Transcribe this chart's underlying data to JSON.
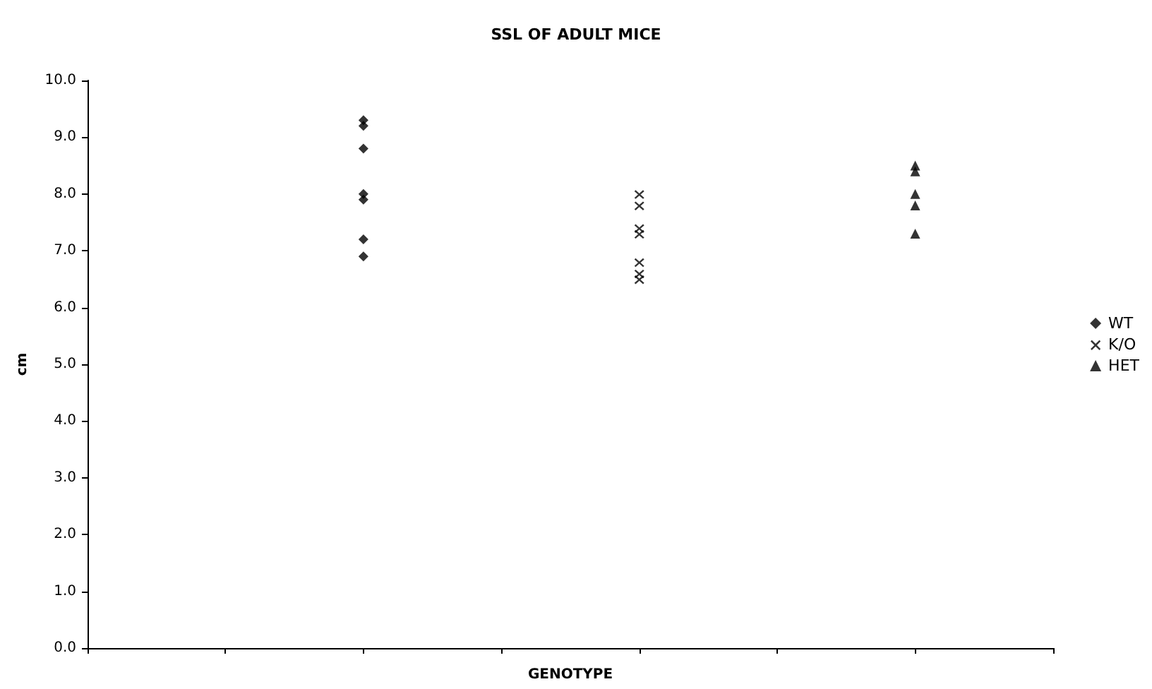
{
  "chart_data": {
    "type": "scatter",
    "title": "SSL OF ADULT MICE",
    "xlabel": "GENOTYPE",
    "ylabel": "cm",
    "categories": [
      null,
      null,
      null,
      null,
      null,
      null,
      null,
      null
    ],
    "ylim": [
      0,
      10
    ],
    "yticks": [
      {
        "value": 0,
        "label": "0.0"
      },
      {
        "value": 1,
        "label": "1.0"
      },
      {
        "value": 2,
        "label": "2.0"
      },
      {
        "value": 3,
        "label": "3.0"
      },
      {
        "value": 4,
        "label": "4.0"
      },
      {
        "value": 5,
        "label": "5.0"
      },
      {
        "value": 6,
        "label": "6.0"
      },
      {
        "value": 7,
        "label": "7.0"
      },
      {
        "value": 8,
        "label": "8.0"
      },
      {
        "value": 9,
        "label": "9.0"
      },
      {
        "value": 10,
        "label": "10.0"
      }
    ],
    "grid": false,
    "legend": "right",
    "series": [
      {
        "name": "WT",
        "color": "#000000",
        "marker": "diamond",
        "values": [
          null,
          null,
          9.3,
          null,
          null,
          null,
          null,
          null
        ]
      },
      {
        "color": "#000000",
        "marker": "diamond",
        "values": [
          null,
          null,
          9.2,
          null,
          null,
          null,
          null,
          null
        ]
      },
      {
        "color": "#000000",
        "marker": "diamond",
        "values": [
          null,
          null,
          8.8,
          null,
          null,
          null,
          null,
          null
        ]
      },
      {
        "color": "#000000",
        "marker": "diamond",
        "values": [
          null,
          null,
          8.0,
          null,
          null,
          null,
          null,
          null
        ]
      },
      {
        "color": "#000000",
        "marker": "diamond",
        "values": [
          null,
          null,
          7.9,
          null,
          null,
          null,
          null,
          null
        ]
      },
      {
        "color": "#000000",
        "marker": "diamond",
        "values": [
          null,
          null,
          7.2,
          null,
          null,
          null,
          null,
          null
        ]
      },
      {
        "color": "#000000",
        "marker": "diamond",
        "values": [
          null,
          null,
          6.9,
          null,
          null,
          null,
          null,
          null
        ]
      },
      {
        "name": "K/O",
        "color": "#000000",
        "marker": "cross",
        "values": [
          null,
          null,
          null,
          null,
          8.0,
          null,
          null,
          null
        ]
      },
      {
        "color": "#000000",
        "marker": "cross",
        "values": [
          null,
          null,
          null,
          null,
          7.8,
          null,
          null,
          null
        ]
      },
      {
        "color": "#000000",
        "marker": "cross",
        "values": [
          null,
          null,
          null,
          null,
          7.4,
          null,
          null,
          null
        ]
      },
      {
        "color": "#000000",
        "marker": "cross",
        "values": [
          null,
          null,
          null,
          null,
          7.3,
          null,
          null,
          null
        ]
      },
      {
        "color": "#000000",
        "marker": "cross",
        "values": [
          null,
          null,
          null,
          null,
          6.8,
          null,
          null,
          null
        ]
      },
      {
        "color": "#000000",
        "marker": "cross",
        "values": [
          null,
          null,
          null,
          null,
          6.6,
          null,
          null,
          null
        ]
      },
      {
        "color": "#000000",
        "marker": "cross",
        "values": [
          null,
          null,
          null,
          null,
          6.5,
          null,
          null,
          null
        ]
      },
      {
        "name": "HET",
        "color": "#000000",
        "marker": "triangle",
        "values": [
          null,
          null,
          null,
          null,
          null,
          null,
          8.5,
          null
        ]
      },
      {
        "color": "#000000",
        "marker": "triangle",
        "values": [
          null,
          null,
          null,
          null,
          null,
          null,
          8.4,
          null
        ]
      },
      {
        "color": "#000000",
        "marker": "triangle",
        "values": [
          null,
          null,
          null,
          null,
          null,
          null,
          8.0,
          null
        ]
      },
      {
        "color": "#000000",
        "marker": "triangle",
        "values": [
          null,
          null,
          null,
          null,
          null,
          null,
          7.8,
          null
        ]
      },
      {
        "color": "#000000",
        "marker": "triangle",
        "values": [
          null,
          null,
          null,
          null,
          null,
          null,
          7.3,
          null
        ]
      }
    ]
  }
}
